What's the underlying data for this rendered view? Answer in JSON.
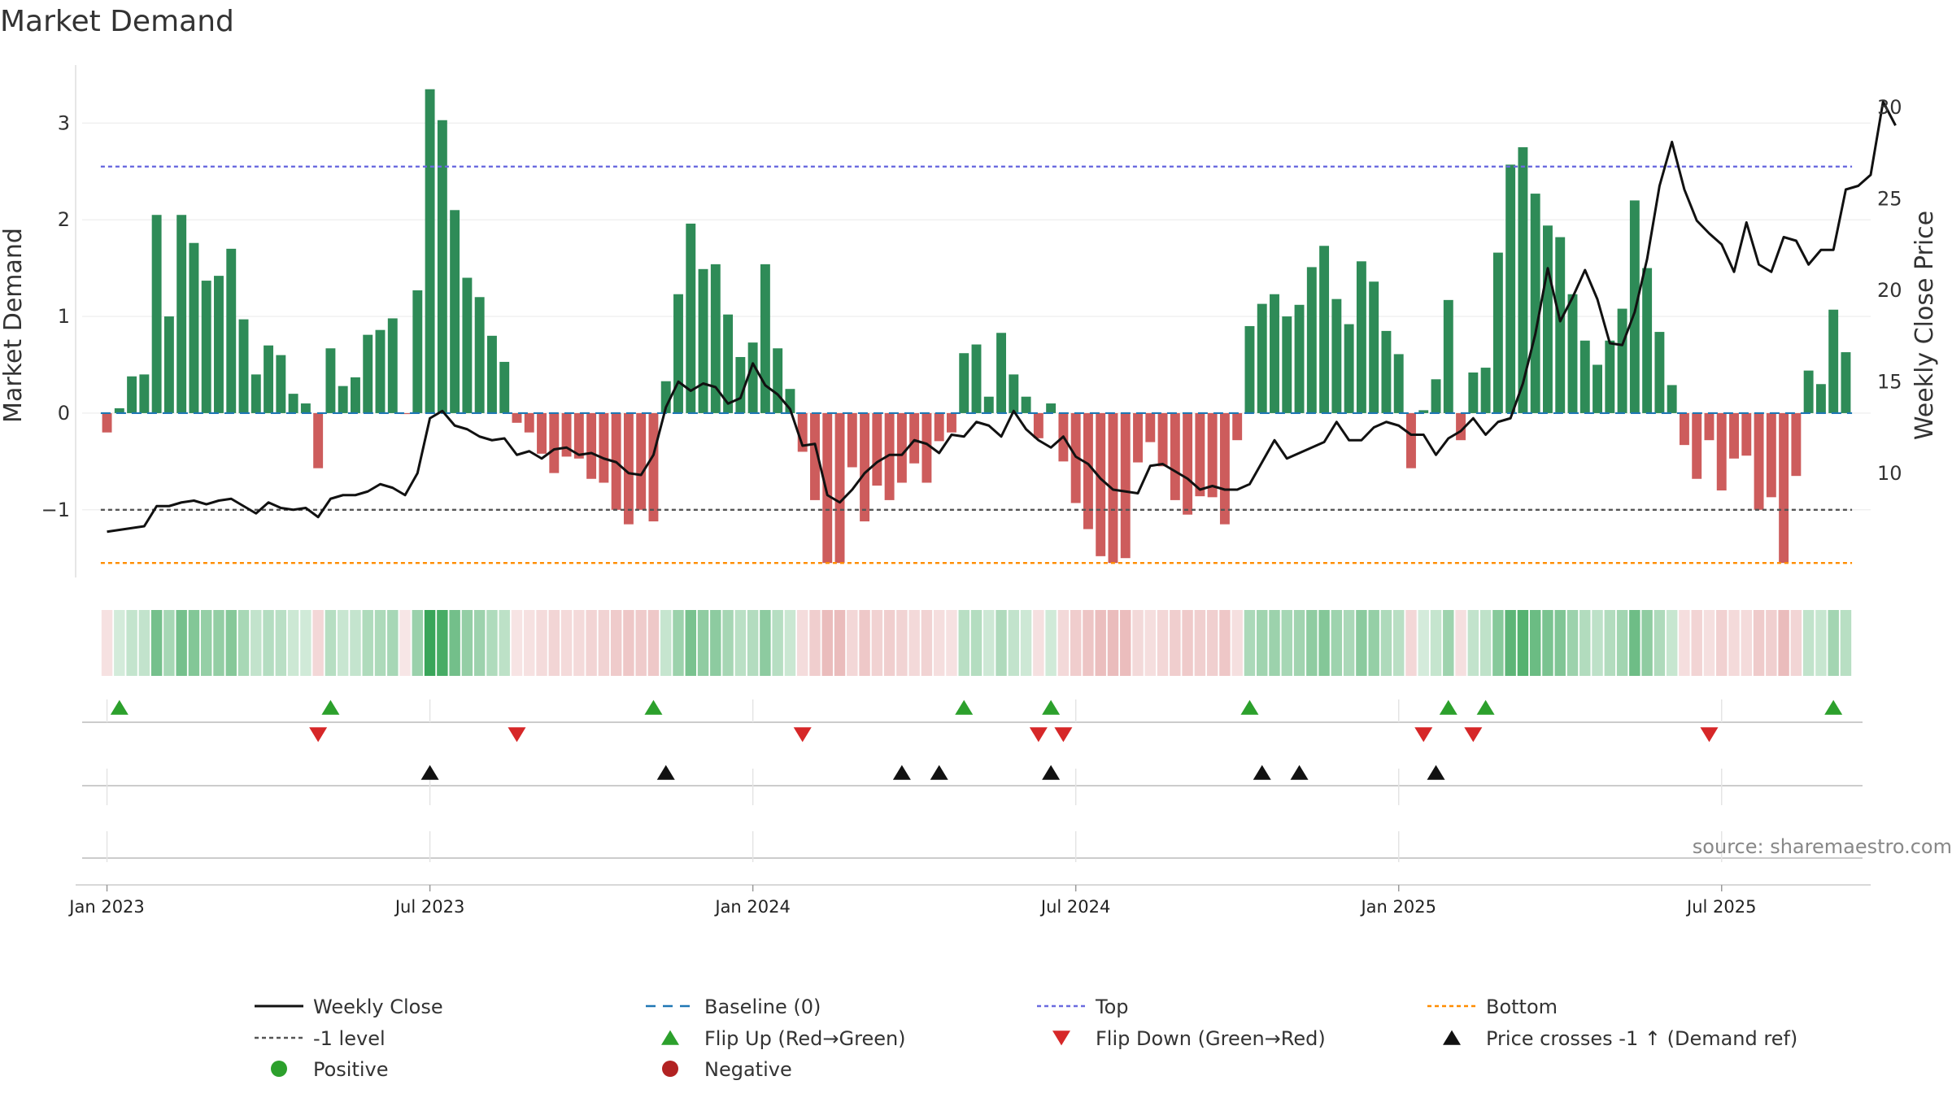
{
  "colors": {
    "positive_bar": "#2e8b57",
    "negative_bar": "#cd5c5c",
    "price_line": "#111111",
    "baseline": "#1f77b4",
    "top": "#6a6adf",
    "bottom": "#ff8c00",
    "neg_one": "#555555",
    "flip_up": "#2ca02c",
    "flip_down": "#d62728",
    "cross": "#111111",
    "positive_dot": "#2ca02c",
    "negative_dot": "#b22222"
  },
  "chart_data": {
    "type": "bar+line",
    "title": "Market Demand",
    "ylabel": "Market Demand",
    "y2label": "Weekly Close Price",
    "source": "source: sharemaestro.com",
    "x_ticks": [
      "Jan 2023",
      "Jul 2023",
      "Jan 2024",
      "Jul 2024",
      "Jan 2025",
      "Jul 2025"
    ],
    "x_tick_weeks": [
      0,
      26,
      52,
      78,
      104,
      130
    ],
    "x_range_weeks": [
      -2,
      142
    ],
    "y_ticks": [
      3,
      2,
      1,
      0,
      -1
    ],
    "y_tick_labels": [
      "3",
      "2",
      "1",
      "0",
      "−1"
    ],
    "ylim": [
      -1.7,
      3.6
    ],
    "y2_ticks": [
      30,
      25,
      20,
      15,
      10
    ],
    "y2lim": [
      4.3,
      32.3
    ],
    "top_level": 2.55,
    "bottom_level": -1.55,
    "neg_one_level": -1.0,
    "baseline_level": 0,
    "demand": [
      -0.2,
      0.05,
      0.38,
      0.4,
      2.05,
      1.0,
      2.05,
      1.76,
      1.37,
      1.42,
      1.7,
      0.97,
      0.4,
      0.7,
      0.6,
      0.2,
      0.1,
      -0.57,
      0.67,
      0.28,
      0.37,
      0.81,
      0.86,
      0.98,
      -0.01,
      1.27,
      3.35,
      3.03,
      2.1,
      1.4,
      1.2,
      0.8,
      0.53,
      -0.1,
      -0.2,
      -0.42,
      -0.62,
      -0.45,
      -0.47,
      -0.68,
      -0.72,
      -1.0,
      -1.15,
      -1.0,
      -1.12,
      0.33,
      1.23,
      1.96,
      1.49,
      1.54,
      1.02,
      0.58,
      0.73,
      1.54,
      0.67,
      0.25,
      -0.4,
      -0.9,
      -1.55,
      -1.55,
      -0.56,
      -1.12,
      -0.75,
      -0.9,
      -0.72,
      -0.52,
      -0.72,
      -0.29,
      -0.2,
      0.62,
      0.71,
      0.17,
      0.83,
      0.4,
      0.17,
      -0.26,
      0.1,
      -0.5,
      -0.93,
      -1.2,
      -1.48,
      -1.55,
      -1.5,
      -0.51,
      -0.3,
      -0.55,
      -0.9,
      -1.05,
      -0.86,
      -0.87,
      -1.15,
      -0.28,
      0.9,
      1.13,
      1.23,
      1.0,
      1.12,
      1.51,
      1.73,
      1.18,
      0.92,
      1.57,
      1.36,
      0.85,
      0.61,
      -0.57,
      0.03,
      0.35,
      1.17,
      -0.28,
      0.42,
      0.47,
      1.66,
      2.57,
      2.75,
      2.27,
      1.94,
      1.82,
      1.23,
      0.75,
      0.5,
      0.75,
      1.08,
      2.2,
      1.5,
      0.84,
      0.29,
      -0.33,
      -0.68,
      -0.28,
      -0.8,
      -0.47,
      -0.44,
      -1.0,
      -0.87,
      -1.55,
      -0.65,
      0.44,
      0.3,
      1.07,
      0.63
    ],
    "price": [
      6.8,
      6.9,
      7.0,
      7.1,
      8.2,
      8.2,
      8.4,
      8.5,
      8.3,
      8.5,
      8.6,
      8.2,
      7.8,
      8.4,
      8.1,
      8.0,
      8.1,
      7.6,
      8.6,
      8.8,
      8.8,
      9.0,
      9.4,
      9.2,
      8.8,
      10.0,
      13.0,
      13.4,
      12.6,
      12.4,
      12.0,
      11.8,
      11.9,
      11.0,
      11.2,
      10.8,
      11.3,
      11.4,
      11.0,
      11.1,
      10.8,
      10.6,
      10.0,
      9.9,
      11.0,
      13.6,
      15.0,
      14.5,
      14.9,
      14.7,
      13.8,
      14.1,
      16.0,
      14.8,
      14.3,
      13.5,
      11.5,
      11.6,
      8.8,
      8.4,
      9.1,
      10.0,
      10.6,
      11.0,
      11.0,
      11.8,
      11.6,
      11.1,
      12.1,
      12.0,
      12.8,
      12.6,
      12.0,
      13.4,
      12.4,
      11.8,
      11.4,
      12.0,
      10.9,
      10.5,
      9.7,
      9.1,
      9.0,
      8.9,
      10.4,
      10.5,
      10.1,
      9.7,
      9.1,
      9.3,
      9.1,
      9.1,
      9.4,
      10.6,
      11.8,
      10.8,
      11.1,
      11.4,
      11.7,
      12.8,
      11.8,
      11.8,
      12.5,
      12.8,
      12.6,
      12.1,
      12.1,
      11.0,
      11.9,
      12.3,
      13.0,
      12.1,
      12.8,
      13.0,
      14.9,
      17.6,
      21.2,
      18.3,
      19.6,
      21.1,
      19.5,
      17.1,
      17.0,
      18.8,
      21.7,
      25.7,
      28.1,
      25.5,
      23.8,
      23.1,
      22.5,
      21.0,
      23.7,
      21.4,
      21.0,
      22.9,
      22.7,
      21.4,
      22.2,
      22.2,
      25.5,
      25.7,
      26.3,
      30.3,
      29.0
    ],
    "heat_strip": "one cell per week, coloured by demand sign and magnitude",
    "flip_up_weeks": [
      1,
      18,
      44,
      69,
      76,
      92,
      108,
      111,
      139
    ],
    "flip_down_weeks": [
      17,
      33,
      56,
      75,
      77,
      106,
      110,
      129
    ],
    "price_cross_weeks": [
      26,
      45,
      64,
      67,
      76,
      93,
      96,
      107
    ],
    "legend": [
      {
        "label": "Weekly Close",
        "kind": "solid-line",
        "color": "#111111"
      },
      {
        "label": "Baseline (0)",
        "kind": "dashed-line",
        "color": "#1f77b4"
      },
      {
        "label": "Top",
        "kind": "dotted-line",
        "color": "#6a6adf"
      },
      {
        "label": "Bottom",
        "kind": "dotted-line",
        "color": "#ff8c00"
      },
      {
        "label": "-1 level",
        "kind": "dotted-line",
        "color": "#555555"
      },
      {
        "label": "Flip Up (Red→Green)",
        "kind": "triangle-up",
        "color": "#2ca02c"
      },
      {
        "label": "Flip Down (Green→Red)",
        "kind": "triangle-down",
        "color": "#d62728"
      },
      {
        "label": "Price crosses -1 ↑ (Demand ref)",
        "kind": "triangle-up",
        "color": "#111111"
      },
      {
        "label": "Positive",
        "kind": "dot",
        "color": "#2ca02c"
      },
      {
        "label": "Negative",
        "kind": "dot",
        "color": "#b22222"
      }
    ]
  }
}
